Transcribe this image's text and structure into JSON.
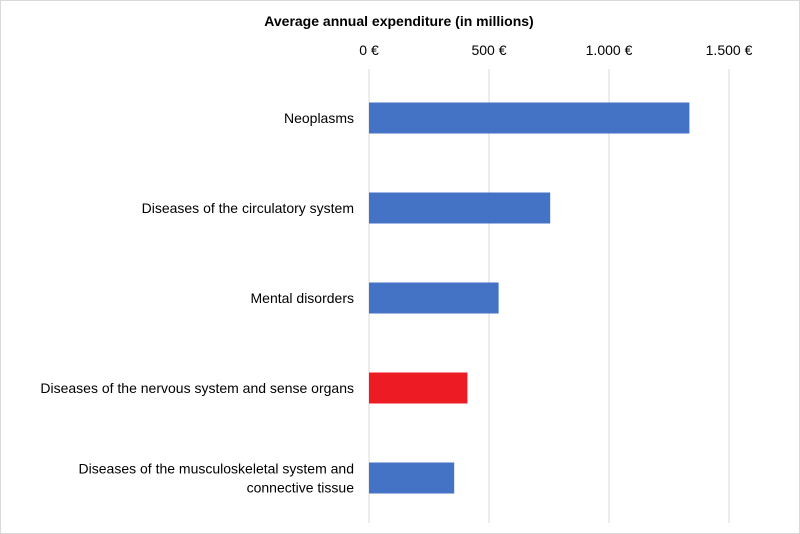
{
  "chart_data": {
    "type": "bar",
    "orientation": "horizontal",
    "title": "Average annual expenditure (in millions)",
    "xlabel": "",
    "ylabel": "",
    "axis_position": "top",
    "xlim": [
      0,
      1500
    ],
    "ticks": [
      0,
      500,
      1000,
      1500
    ],
    "tick_labels": [
      "0 €",
      "500 €",
      "1.000 €",
      "1.500 €"
    ],
    "grid": true,
    "categories": [
      [
        "Neoplasms"
      ],
      [
        "Diseases of the circulatory system"
      ],
      [
        "Mental disorders"
      ],
      [
        "Diseases of the nervous system and sense organs"
      ],
      [
        "Diseases of the musculoskeletal system and",
        "connective tissue"
      ]
    ],
    "values": [
      1335,
      755,
      540,
      410,
      355
    ],
    "colors": [
      "#4472c4",
      "#4472c4",
      "#4472c4",
      "#ed1c24",
      "#4472c4"
    ],
    "highlight_index": 3
  }
}
